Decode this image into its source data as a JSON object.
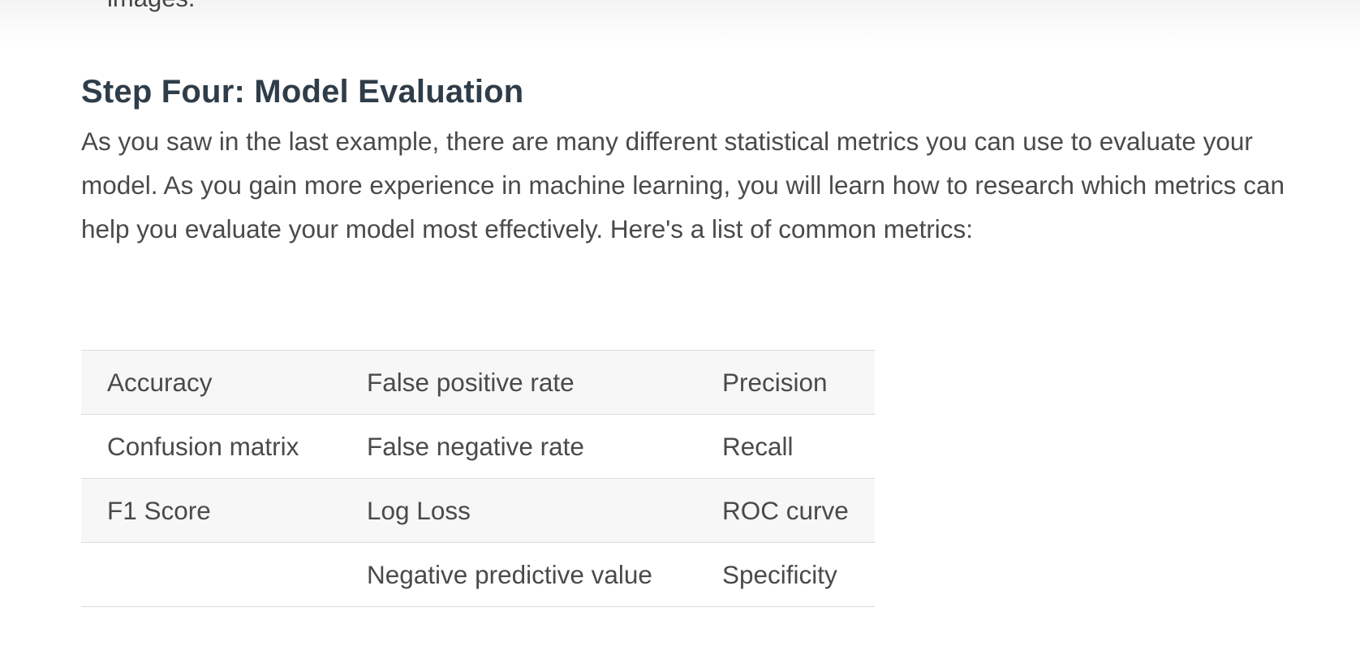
{
  "previous_section": {
    "clipped_text": "images."
  },
  "section": {
    "heading": "Step Four: Model Evaluation",
    "intro": "As you saw in the last example, there are many different statistical metrics you can use to evaluate your model. As you gain more experience in machine learning, you will learn how to research which metrics can help you evaluate your model most effectively. Here's a list of common metrics:"
  },
  "metrics_table": {
    "rows": [
      [
        "Accuracy",
        "False positive rate",
        "Precision"
      ],
      [
        "Confusion matrix",
        "False negative rate",
        "Recall"
      ],
      [
        "F1 Score",
        "Log Loss",
        "ROC curve"
      ],
      [
        "",
        "Negative predictive value",
        "Specificity"
      ]
    ]
  }
}
